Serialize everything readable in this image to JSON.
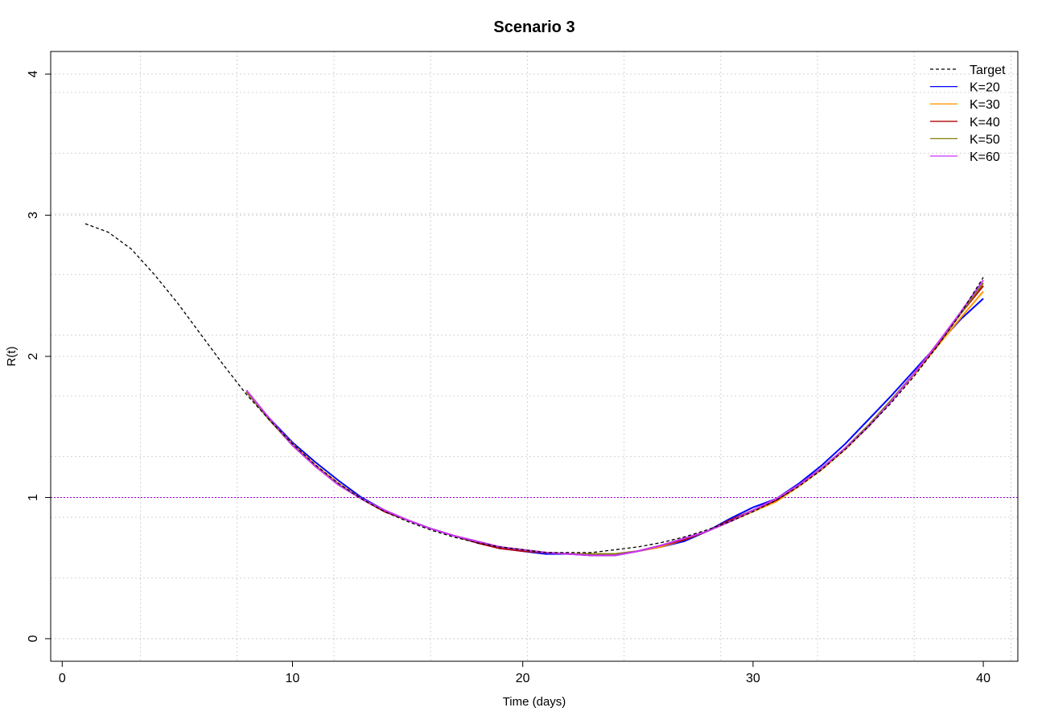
{
  "chart_data": {
    "type": "line",
    "title": "Scenario 3",
    "xlabel": "Time (days)",
    "ylabel": "R(t)",
    "xlim": [
      -0.5,
      41.5
    ],
    "ylim": [
      -0.16,
      4.16
    ],
    "xticks": [
      0,
      10,
      20,
      30,
      40
    ],
    "yticks": [
      0,
      1,
      2,
      3,
      4
    ],
    "grid": true,
    "reference_line": {
      "y": 1,
      "color": "#9900cc"
    },
    "legend": {
      "position": "top-right"
    },
    "series": [
      {
        "name": "Target",
        "color": "#000000",
        "dashed": true,
        "x": [
          1,
          2,
          3,
          4,
          5,
          6,
          7,
          8,
          9,
          10,
          11,
          12,
          13,
          14,
          15,
          16,
          17,
          18,
          19,
          20,
          21,
          22,
          23,
          24,
          25,
          26,
          27,
          28,
          29,
          30,
          31,
          32,
          33,
          34,
          35,
          36,
          37,
          38,
          39,
          40
        ],
        "y": [
          2.94,
          2.88,
          2.76,
          2.58,
          2.38,
          2.16,
          1.94,
          1.73,
          1.55,
          1.38,
          1.23,
          1.1,
          0.99,
          0.9,
          0.83,
          0.77,
          0.72,
          0.68,
          0.65,
          0.63,
          0.61,
          0.61,
          0.61,
          0.63,
          0.65,
          0.68,
          0.72,
          0.77,
          0.83,
          0.9,
          0.98,
          1.08,
          1.2,
          1.34,
          1.5,
          1.67,
          1.86,
          2.07,
          2.3,
          2.56
        ]
      },
      {
        "name": "K=20",
        "color": "#0000ff",
        "x": [
          8,
          9,
          10,
          11,
          12,
          13,
          14,
          15,
          16,
          17,
          18,
          19,
          20,
          21,
          22,
          23,
          24,
          25,
          26,
          27,
          28,
          29,
          30,
          31,
          32,
          33,
          34,
          35,
          36,
          37,
          38,
          39,
          40
        ],
        "y": [
          1.75,
          1.56,
          1.39,
          1.25,
          1.12,
          1.0,
          0.91,
          0.84,
          0.78,
          0.73,
          0.68,
          0.64,
          0.62,
          0.6,
          0.6,
          0.59,
          0.59,
          0.62,
          0.65,
          0.69,
          0.76,
          0.85,
          0.93,
          0.99,
          1.1,
          1.23,
          1.38,
          1.55,
          1.72,
          1.9,
          2.08,
          2.26,
          2.41
        ]
      },
      {
        "name": "K=30",
        "color": "#ff9900",
        "x": [
          8,
          9,
          10,
          11,
          12,
          13,
          14,
          15,
          16,
          17,
          18,
          19,
          20,
          21,
          22,
          23,
          24,
          25,
          26,
          27,
          28,
          29,
          30,
          31,
          32,
          33,
          34,
          35,
          36,
          37,
          38,
          39,
          40
        ],
        "y": [
          1.75,
          1.55,
          1.38,
          1.23,
          1.1,
          0.99,
          0.91,
          0.84,
          0.78,
          0.73,
          0.69,
          0.65,
          0.63,
          0.61,
          0.6,
          0.6,
          0.6,
          0.62,
          0.65,
          0.7,
          0.76,
          0.83,
          0.9,
          0.97,
          1.08,
          1.2,
          1.34,
          1.5,
          1.68,
          1.87,
          2.07,
          2.27,
          2.46
        ]
      },
      {
        "name": "K=40",
        "color": "#b30000",
        "x": [
          8,
          9,
          10,
          11,
          12,
          13,
          14,
          15,
          16,
          17,
          18,
          19,
          20,
          21,
          22,
          23,
          24,
          25,
          26,
          27,
          28,
          29,
          30,
          31,
          32,
          33,
          34,
          35,
          36,
          37,
          38,
          39,
          40
        ],
        "y": [
          1.75,
          1.55,
          1.37,
          1.22,
          1.09,
          0.99,
          0.9,
          0.84,
          0.78,
          0.73,
          0.68,
          0.64,
          0.62,
          0.61,
          0.6,
          0.59,
          0.59,
          0.62,
          0.66,
          0.7,
          0.76,
          0.84,
          0.91,
          0.98,
          1.09,
          1.21,
          1.35,
          1.51,
          1.69,
          1.88,
          2.08,
          2.3,
          2.5
        ]
      },
      {
        "name": "K=50",
        "color": "#808000",
        "x": [
          8,
          9,
          10,
          11,
          12,
          13,
          14,
          15,
          16,
          17,
          18,
          19,
          20,
          21,
          22,
          23,
          24,
          25,
          26,
          27,
          28,
          29,
          30,
          31,
          32,
          33,
          34,
          35,
          36,
          37,
          38,
          39,
          40
        ],
        "y": [
          1.75,
          1.55,
          1.37,
          1.22,
          1.09,
          0.99,
          0.91,
          0.84,
          0.78,
          0.73,
          0.69,
          0.65,
          0.63,
          0.61,
          0.6,
          0.6,
          0.6,
          0.62,
          0.66,
          0.71,
          0.76,
          0.83,
          0.91,
          0.99,
          1.09,
          1.21,
          1.35,
          1.51,
          1.69,
          1.88,
          2.09,
          2.3,
          2.52
        ]
      },
      {
        "name": "K=60",
        "color": "#cc33ff",
        "x": [
          8,
          9,
          10,
          11,
          12,
          13,
          14,
          15,
          16,
          17,
          18,
          19,
          20,
          21,
          22,
          23,
          24,
          25,
          26,
          27,
          28,
          29,
          30,
          31,
          32,
          33,
          34,
          35,
          36,
          37,
          38,
          39,
          40
        ],
        "y": [
          1.76,
          1.56,
          1.37,
          1.22,
          1.09,
          0.99,
          0.91,
          0.84,
          0.78,
          0.73,
          0.69,
          0.65,
          0.63,
          0.61,
          0.6,
          0.59,
          0.59,
          0.62,
          0.66,
          0.71,
          0.76,
          0.83,
          0.91,
          0.99,
          1.09,
          1.21,
          1.35,
          1.5,
          1.68,
          1.88,
          2.09,
          2.31,
          2.54
        ]
      }
    ]
  }
}
